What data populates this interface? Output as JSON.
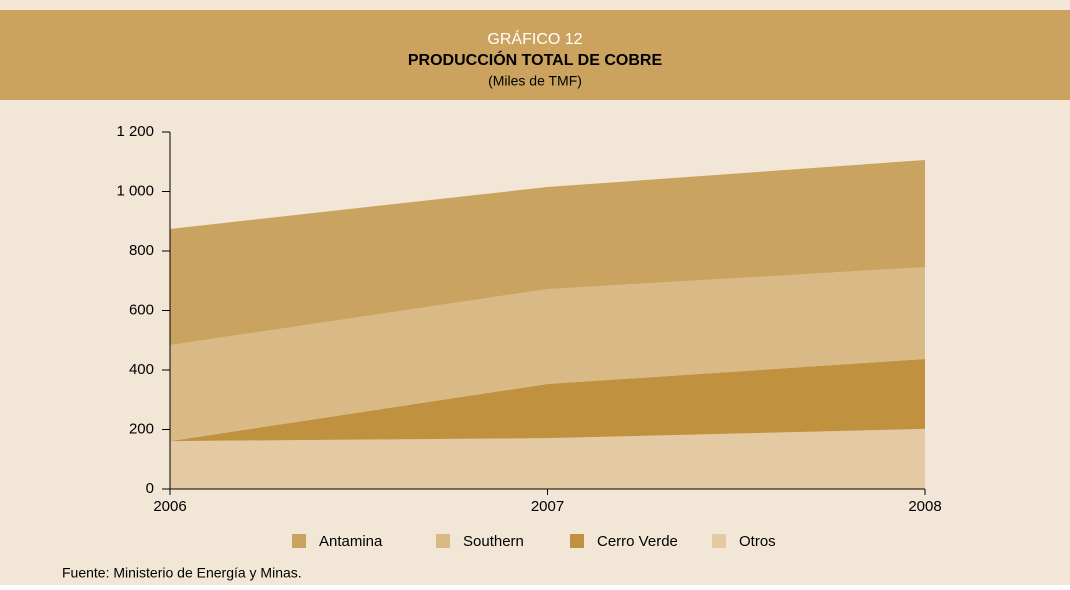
{
  "chart_data": {
    "type": "stacked_area",
    "header": "GRÁFICO 12",
    "title": "PRODUCCIÓN TOTAL DE COBRE",
    "subtitle": "(Miles de TMF)",
    "source": "Fuente: Ministerio de Energía y Minas.",
    "categories": [
      "2006",
      "2007",
      "2008"
    ],
    "series": [
      {
        "name": "Antamina",
        "color": "#c9a35f",
        "values": [
          390,
          343,
          360
        ]
      },
      {
        "name": "Southern",
        "color": "#d9b985",
        "values": [
          323,
          319,
          309
        ]
      },
      {
        "name": "Cerro Verde",
        "color": "#c0913f",
        "values": [
          0,
          182,
          235
        ]
      },
      {
        "name": "Otros",
        "color": "#e3caa3",
        "values": [
          161,
          171,
          202
        ]
      }
    ],
    "ylim": [
      0,
      1200
    ],
    "yticks": [
      0,
      200,
      400,
      600,
      800,
      {
        "value": 1000,
        "label": "1 000"
      },
      {
        "value": 1200,
        "label": "1 200"
      }
    ]
  }
}
